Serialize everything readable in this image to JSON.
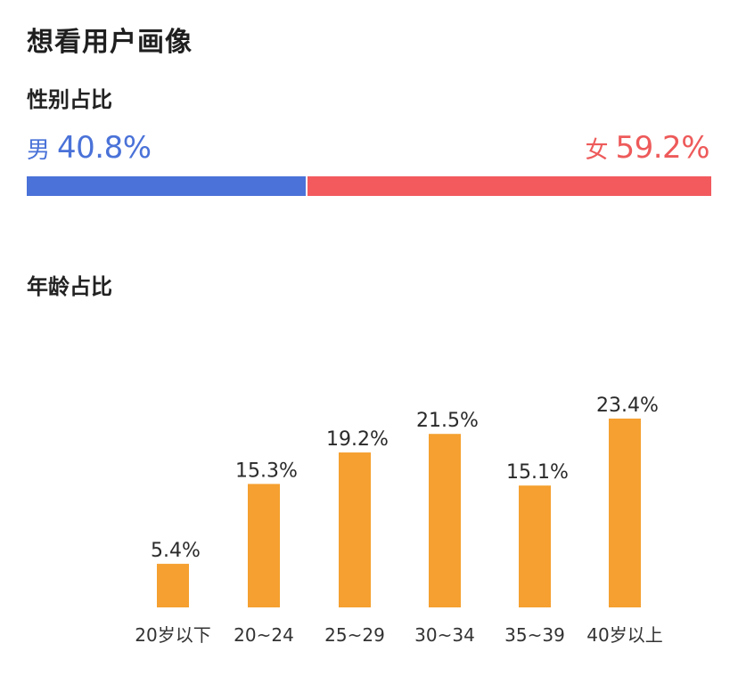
{
  "title": "想看用户画像",
  "gender": {
    "section_title": "性别占比",
    "male": {
      "label": "男",
      "percent_text": "40.8%",
      "value": 40.8,
      "color": "#4a72d8"
    },
    "female": {
      "label": "女",
      "percent_text": "59.2%",
      "value": 59.2,
      "color": "#f25a5e"
    }
  },
  "age": {
    "section_title": "年龄占比"
  },
  "chart_data": {
    "type": "bar",
    "categories": [
      "20岁以下",
      "20~24",
      "25~29",
      "30~34",
      "35~39",
      "40岁以上"
    ],
    "values": [
      5.4,
      15.3,
      19.2,
      21.5,
      15.1,
      23.4
    ],
    "data_labels": [
      "5.4%",
      "15.3%",
      "19.2%",
      "21.5%",
      "15.1%",
      "23.4%"
    ],
    "unit": "%",
    "bar_color": "#f5a030",
    "ylim": [
      0,
      23.4
    ],
    "grid": false,
    "legend": "none"
  }
}
